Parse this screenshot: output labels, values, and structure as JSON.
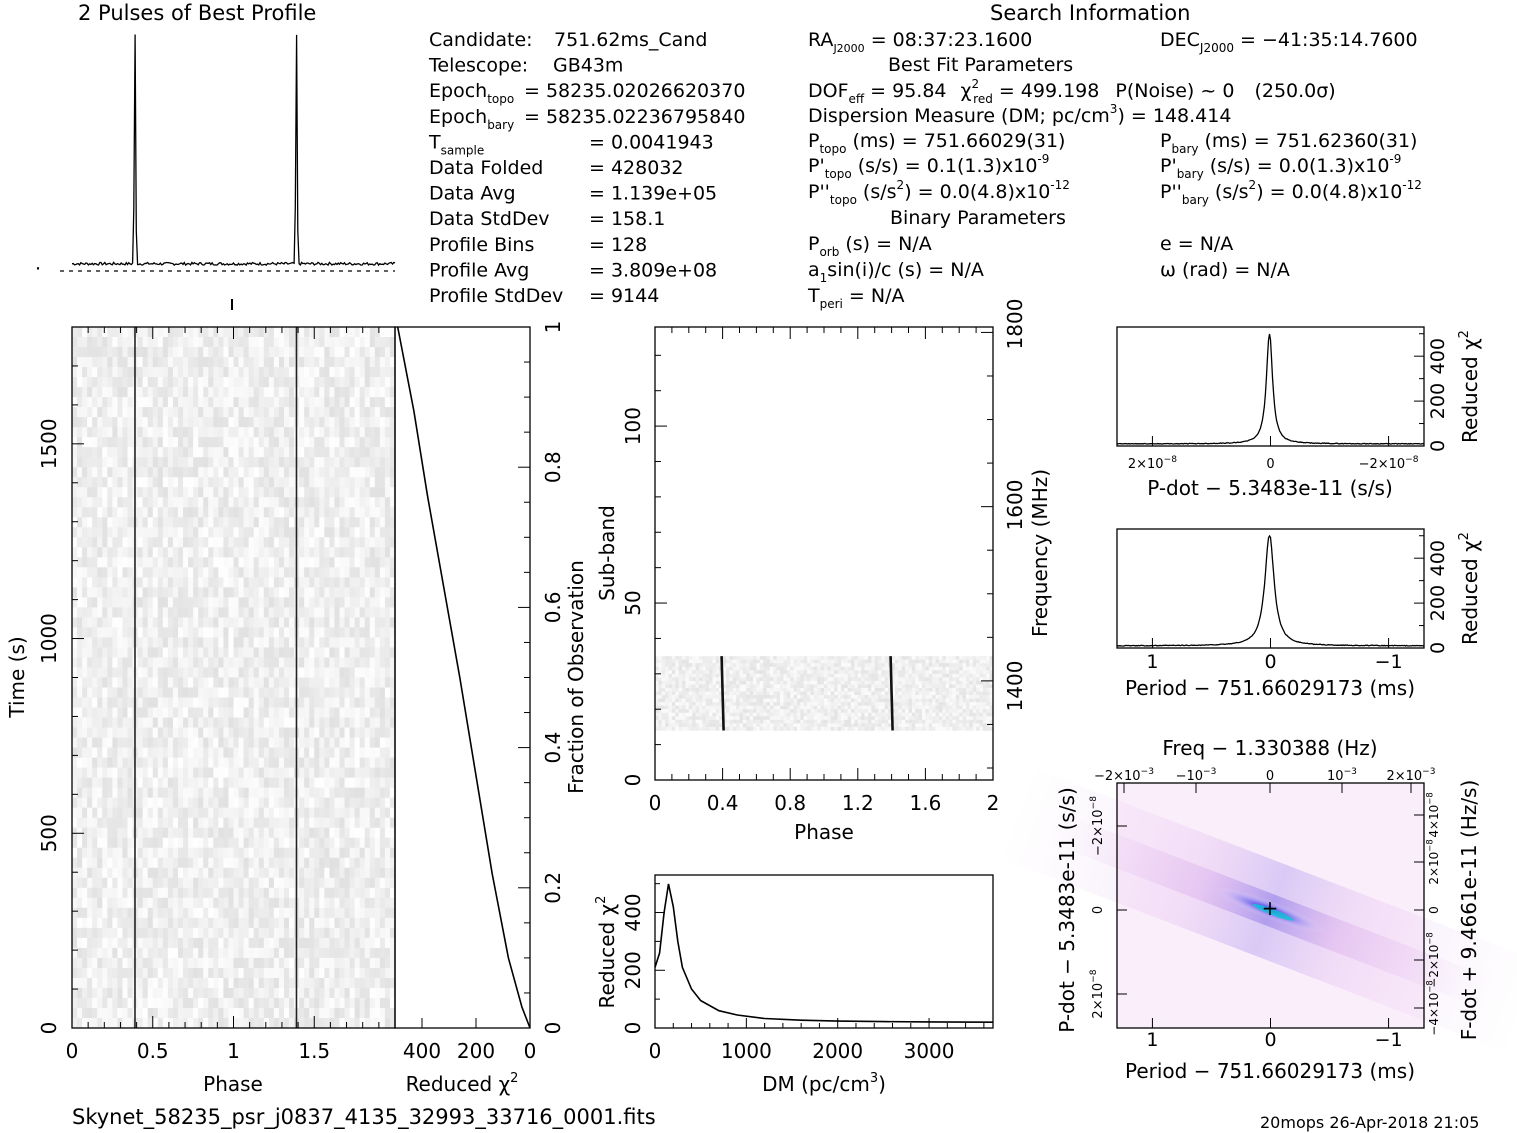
{
  "profile_title": "2 Pulses of Best Profile",
  "search_title": "Search Information",
  "best_fit_title": "Best Fit Parameters",
  "binary_title": "Binary Parameters",
  "footer": {
    "filename": "Skynet_58235_psr_j0837_4135_32993_33716_0001.fits",
    "stamp": "20mops 26-Apr-2018 21:05"
  },
  "info_left": [
    {
      "label": "Candidate:",
      "value": "751.62ms_Cand"
    },
    {
      "label": "Telescope:",
      "value": "GB43m"
    },
    {
      "label": "Epoch",
      "sub": "topo",
      "value": "= 58235.02026620370"
    },
    {
      "label": "Epoch",
      "sub": "bary",
      "value": "= 58235.02236795840"
    },
    {
      "label": "T",
      "sub": "sample",
      "value": "=  0.0041943"
    },
    {
      "label": "Data Folded",
      "value": "=  428032"
    },
    {
      "label": "Data Avg",
      "value": "=  1.139e+05"
    },
    {
      "label": "Data StdDev",
      "value": "=  158.1"
    },
    {
      "label": "Profile Bins",
      "value": "=  128"
    },
    {
      "label": "Profile Avg",
      "value": "=  3.809e+08"
    },
    {
      "label": "Profile StdDev",
      "value": "=  9144"
    }
  ],
  "info_mid": {
    "ra": "RA",
    "ra_sub": "J2000",
    "ra_val": "= 08:37:23.1600",
    "dof": "DOF",
    "dof_sub": "eff",
    "dof_val": "= 95.84",
    "chi": "χ",
    "chi_sup": "2",
    "chi_sub": "red",
    "chi_val": "= 499.198",
    "pnoise": "P(Noise) ~ 0",
    "sigma": "(250.0σ)",
    "dm": "Dispersion Measure (DM; pc/cm",
    "dm_sup": "3",
    "dm_val": ") = 148.414",
    "ptopo": "P",
    "ptopo_sub": "topo",
    "ptopo_val": "(ms) =  751.66029(31)",
    "pdtopo": "P'",
    "pdtopo_sub": "topo",
    "pdtopo_val": "(s/s) =  0.1(1.3)x10",
    "pdtopo_exp": "-9",
    "pddtopo": "P''",
    "pddtopo_sub": "topo",
    "pddtopo_val": "(s/s",
    "pddtopo_sup": "2",
    "pddtopo_val2": ") = 0.0(4.8)x10",
    "pddtopo_exp": "-12",
    "porb": "P",
    "porb_sub": "orb",
    "porb_val": "(s) = N/A",
    "a1": "a",
    "a1_sub": "1",
    "a1_val": "sin(i)/c (s) = N/A",
    "tperi": "T",
    "tperi_sub": "peri",
    "tperi_val": "= N/A"
  },
  "info_right": {
    "dec": "DEC",
    "dec_sub": "J2000",
    "dec_val": "= −41:35:14.7600",
    "pbary": "P",
    "pbary_sub": "bary",
    "pbary_val": "(ms) =  751.62360(31)",
    "pdbary": "P'",
    "pdbary_sub": "bary",
    "pdbary_val": "(s/s) = 0.0(1.3)x10",
    "pdbary_exp": "-9",
    "pddbary": "P''",
    "pddbary_sub": "bary",
    "pddbary_val": "(s/s",
    "pddbary_sup": "2",
    "pddbary_val2": ") = 0.0(4.8)x10",
    "pddbary_exp": "-12",
    "ecc": "e = N/A",
    "omega": "ω (rad) = N/A"
  },
  "chart_data": [
    {
      "id": "profile",
      "type": "line",
      "title": "2 Pulses of Best Profile",
      "x_range": [
        0,
        2
      ],
      "y": "two narrow pulses",
      "peaks": [
        {
          "x": 0.39,
          "y": 1.0
        },
        {
          "x": 1.39,
          "y": 1.0
        }
      ],
      "baseline": 0.04,
      "grid": false
    },
    {
      "id": "time-phase",
      "type": "heatmap",
      "xlabel": "Phase",
      "ylabel": "Time (s)",
      "xlim": [
        0,
        2
      ],
      "ylim": [
        0,
        1800
      ],
      "xticks": [
        "0",
        "0.5",
        "1",
        "1.5"
      ],
      "yticks": [
        "0",
        "500",
        "1000",
        "1500"
      ],
      "pulse_phase": [
        0.39,
        1.39
      ],
      "right_ticks": [
        "0",
        "0.2",
        "0.4",
        "0.6",
        "0.8",
        "1"
      ],
      "right_label": "Fraction of Observation"
    },
    {
      "id": "cumulative-chi",
      "type": "line",
      "xlabel": "Reduced",
      "xlabel_sym": "χ",
      "xlabel_sup": "2",
      "xticks": [
        "400",
        "200",
        "0"
      ],
      "xlim": [
        500,
        0
      ],
      "ylim": [
        0,
        1
      ],
      "x": [
        0,
        30,
        80,
        140,
        200,
        260,
        320,
        380,
        430,
        470,
        490
      ],
      "y": [
        0,
        0.03,
        0.1,
        0.22,
        0.36,
        0.5,
        0.63,
        0.76,
        0.88,
        0.96,
        1.0
      ]
    },
    {
      "id": "subband-phase",
      "type": "heatmap",
      "xlabel": "Phase",
      "ylabel": "Sub-band",
      "y2label": "Frequency (MHz)",
      "xlim": [
        0,
        2
      ],
      "ylim": [
        0,
        128
      ],
      "xticks": [
        "0",
        "0.4",
        "0.8",
        "1.2",
        "1.6",
        "2"
      ],
      "yticks": [
        "0",
        "50",
        "100"
      ],
      "y2ticks": [
        "1400",
        "1600",
        "1800"
      ],
      "band": [
        14,
        35
      ],
      "pulse_phase": [
        0.4,
        1.4
      ]
    },
    {
      "id": "dm-chi",
      "type": "line",
      "xlabel": "DM (pc/cm",
      "xlabel_sup": "3",
      "xlabel_end": ")",
      "ylabel": "Reduced",
      "ylabel_sym": "χ",
      "ylabel_sup": "2",
      "xlim": [
        0,
        3700
      ],
      "ylim": [
        0,
        530
      ],
      "xticks": [
        "0",
        "1000",
        "2000",
        "3000"
      ],
      "yticks": [
        "0",
        "200",
        "400"
      ],
      "x": [
        0,
        50,
        100,
        148,
        200,
        250,
        300,
        400,
        500,
        700,
        900,
        1200,
        1600,
        2000,
        2500,
        3000,
        3700
      ],
      "y": [
        210,
        260,
        400,
        499,
        420,
        300,
        210,
        135,
        95,
        60,
        45,
        33,
        27,
        24,
        22,
        21,
        20
      ]
    },
    {
      "id": "pdot-chi",
      "type": "line",
      "xlabel": "P-dot − 5.3483e-11 (s/s)",
      "ylabel": "Reduced",
      "ylabel_sym": "χ",
      "ylabel_sup": "2",
      "xlim": [
        2.6e-08,
        -2.6e-08
      ],
      "ylim": [
        0,
        530
      ],
      "xticks": [
        {
          "pos": 2e-08,
          "base": "2×10",
          "exp": "−8"
        },
        {
          "pos": 0,
          "base": "0"
        },
        {
          "pos": -2e-08,
          "base": "−2×10",
          "exp": "−8"
        }
      ],
      "yticks": [
        "0",
        "200",
        "400"
      ],
      "peak": 499
    },
    {
      "id": "period-chi",
      "type": "line",
      "xlabel": "Period − 751.66029173 (ms)",
      "ylabel": "Reduced",
      "ylabel_sym": "χ",
      "ylabel_sup": "2",
      "xlim": [
        1.3,
        -1.3
      ],
      "ylim": [
        0,
        530
      ],
      "xticks": [
        "1",
        "0",
        "−1"
      ],
      "yticks": [
        "0",
        "200",
        "400"
      ],
      "peak": 499
    },
    {
      "id": "period-pdot",
      "type": "heatmap",
      "title": "Freq − 1.330388 (Hz)",
      "xlabel": "Period − 751.66029173 (ms)",
      "ylabel": "P-dot − 5.3483e-11 (s/s)",
      "y2label": "F-dot + 9.4661e-11 (Hz/s)",
      "xlim": [
        1.3,
        -1.3
      ],
      "xticks": [
        "1",
        "0",
        "−1"
      ],
      "top_ticks": [
        {
          "base": "−2×10",
          "exp": "−3"
        },
        {
          "base": "−10",
          "exp": "−3"
        },
        {
          "base": "0"
        },
        {
          "base": "10",
          "exp": "−3"
        },
        {
          "base": "2×10",
          "exp": "−3"
        }
      ],
      "left_ticks": [
        {
          "base": "−2×10",
          "exp": "−8"
        },
        {
          "base": "0"
        },
        {
          "base": "2×10",
          "exp": "−8"
        }
      ],
      "right_ticks": [
        {
          "base": "4×10",
          "exp": "−8"
        },
        {
          "base": "2×10",
          "exp": "−8"
        },
        {
          "base": "0"
        },
        {
          "base": "−2×10",
          "exp": "−8"
        },
        {
          "base": "−4×10",
          "exp": "−8"
        }
      ]
    }
  ]
}
